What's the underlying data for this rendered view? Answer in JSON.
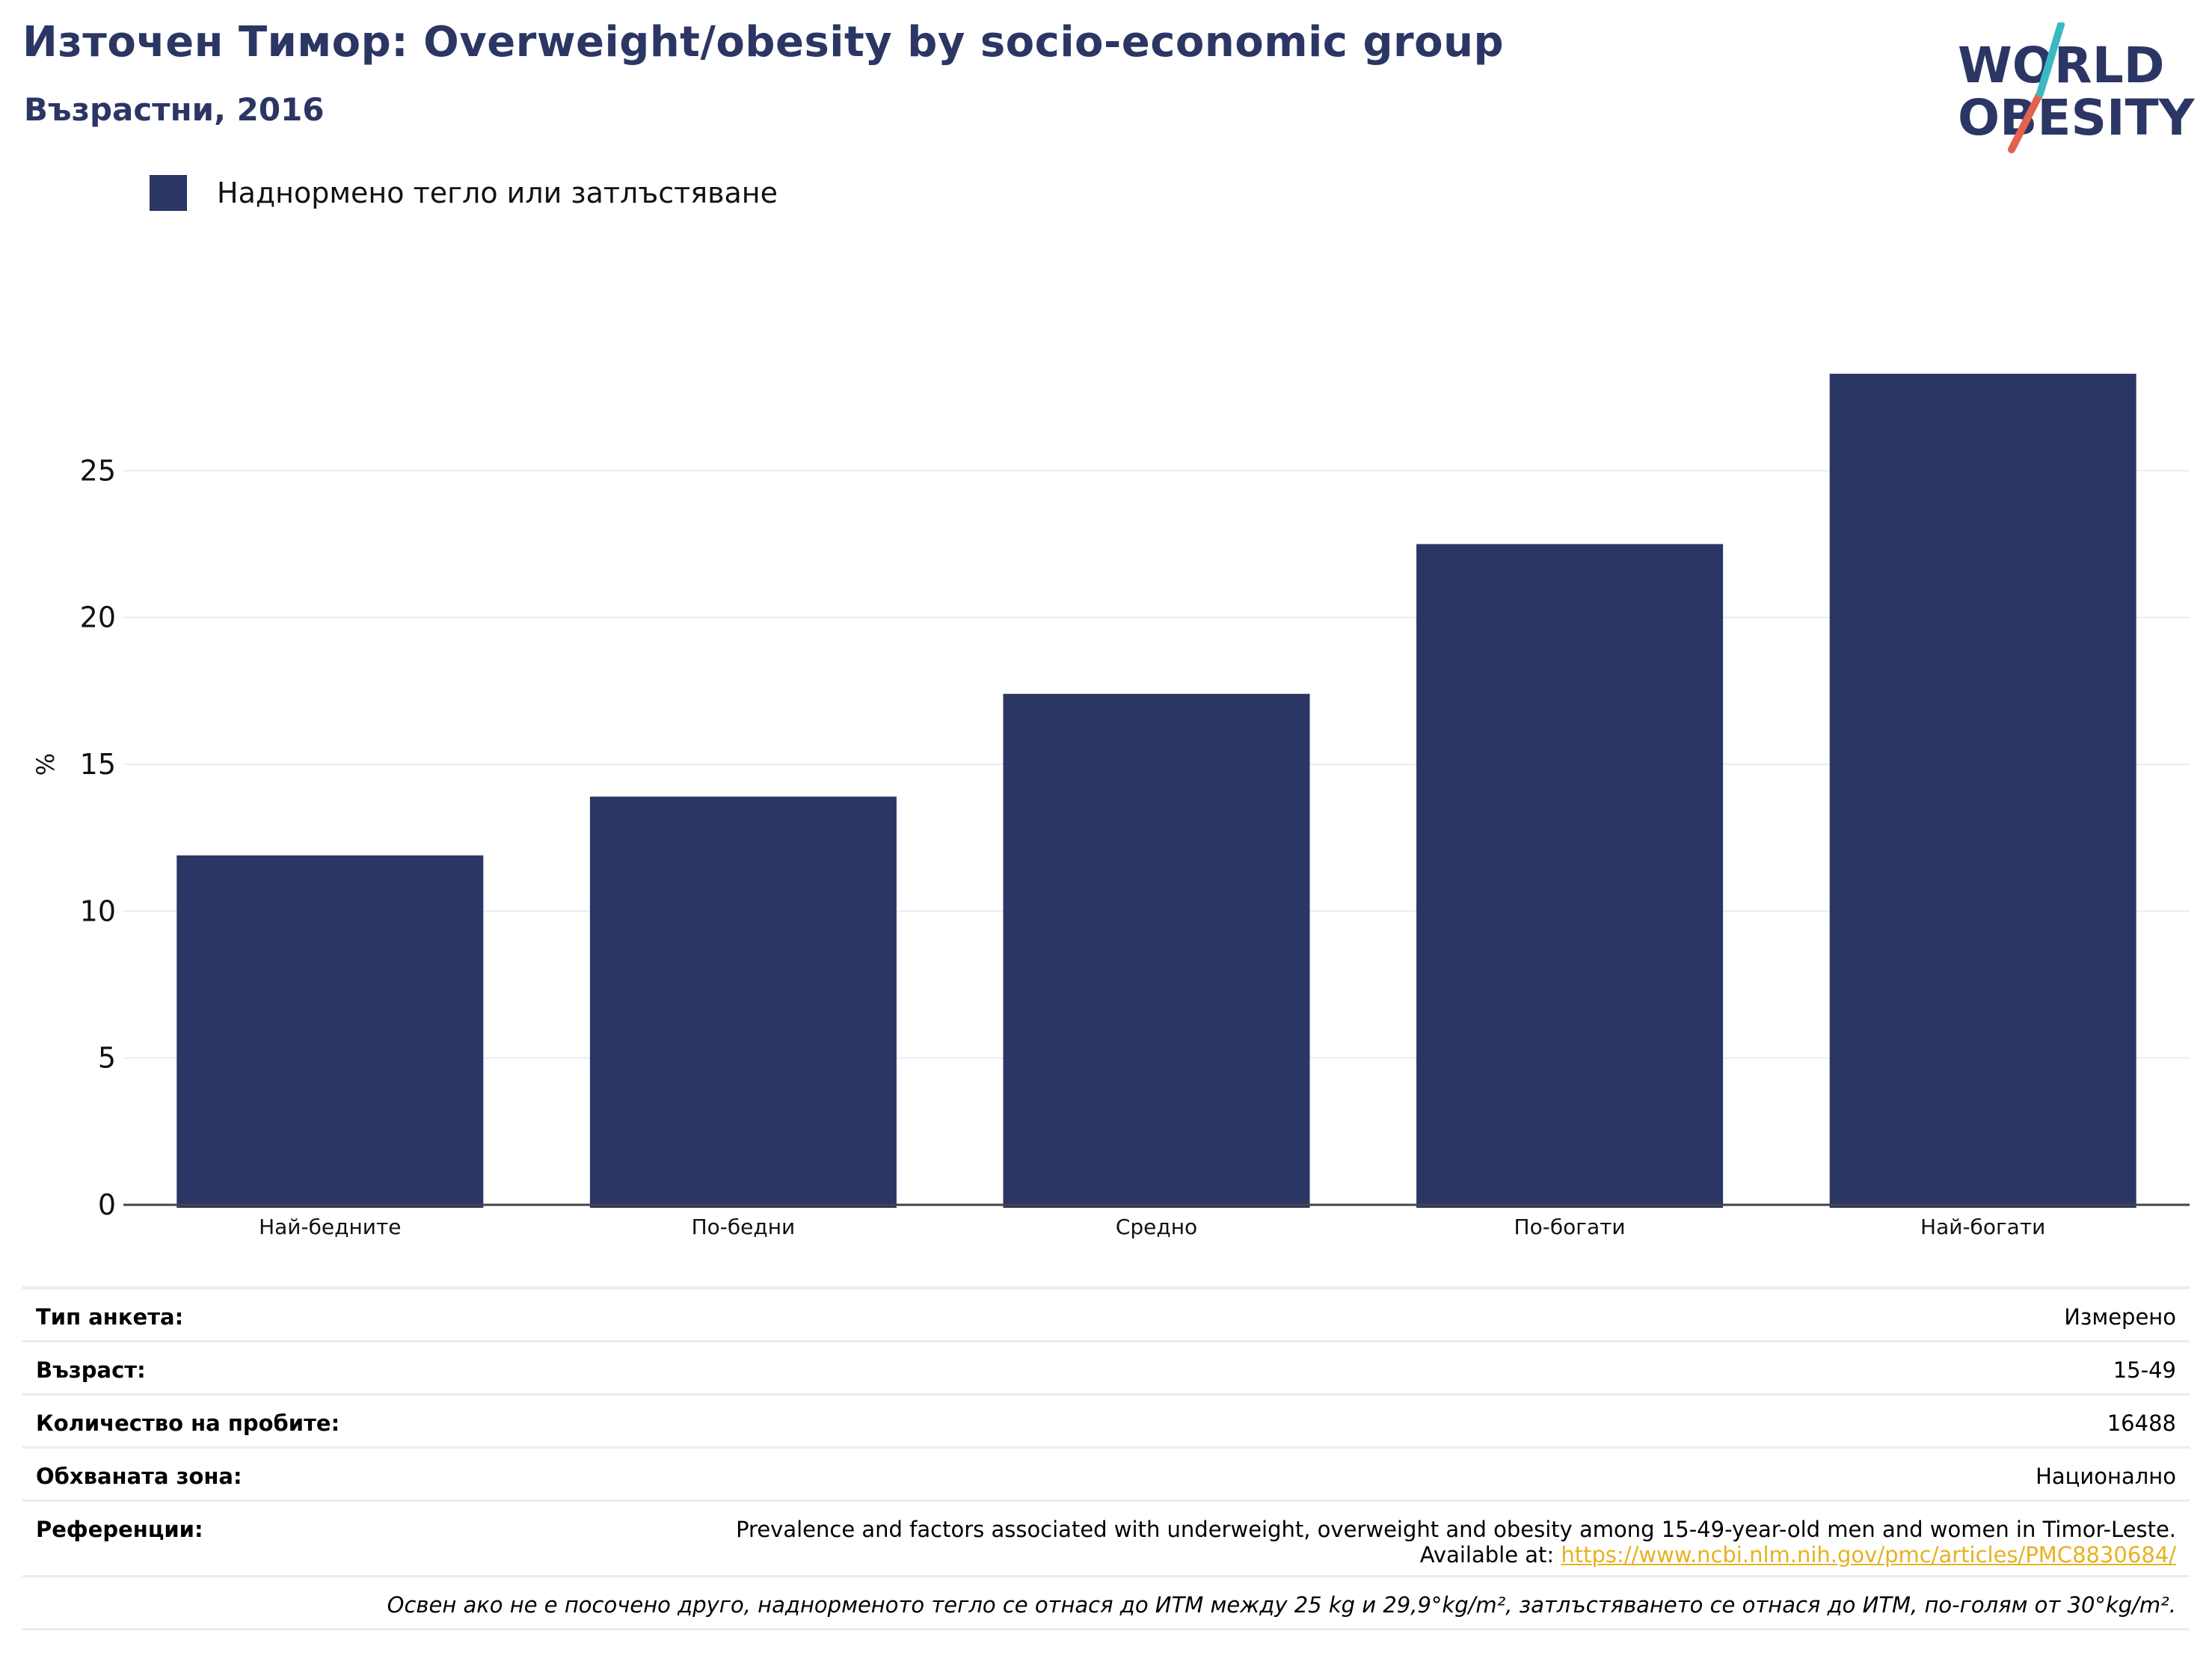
{
  "header": {
    "title": "Източен Тимор: Overweight/obesity by socio-economic group",
    "subtitle": "Възрастни, 2016"
  },
  "logo": {
    "line1": "WORLD",
    "line2": "OBESITY",
    "colors": {
      "text": "#2b3664",
      "slash_red": "#e4604f",
      "slash_teal": "#3bb8c2"
    }
  },
  "legend": {
    "label": "Наднормено тегло или затлъстяване",
    "color": "#2b3664"
  },
  "chart_data": {
    "type": "bar",
    "categories": [
      "Най-бедните",
      "По-бедни",
      "Средно",
      "По-богати",
      "Най-богати"
    ],
    "series": [
      {
        "name": "Наднормено тегло или затлъстяване",
        "values": [
          11.9,
          13.9,
          17.4,
          22.5,
          28.3
        ],
        "color": "#2b3664"
      }
    ],
    "ylabel": "%",
    "xlabel": "",
    "ylim": [
      0,
      30
    ],
    "yticks": [
      0,
      5,
      10,
      15,
      20,
      25
    ],
    "grid": true,
    "legend_position": "top-left"
  },
  "meta": {
    "survey_type": {
      "label": "Тип анкета:",
      "value": "Измерено"
    },
    "age": {
      "label": "Възраст:",
      "value": "15-49"
    },
    "sample_size": {
      "label": "Количество на пробите:",
      "value": "16488"
    },
    "coverage": {
      "label": "Обхваната зона:",
      "value": "Национално"
    },
    "references": {
      "label": "Референции:",
      "text": "Prevalence and factors associated with underweight, overweight and obesity among 15-49-year-old men and women in Timor-Leste.",
      "available_prefix": "Available at: ",
      "url": "https://www.ncbi.nlm.nih.gov/pmc/articles/PMC8830684/"
    },
    "note": "Освен ако не е посочено друго, наднорменото тегло се отнася до ИТМ между 25 kg и 29,9°kg/m², затлъстяването се отнася до ИТМ, по-голям от 30°kg/m²."
  }
}
